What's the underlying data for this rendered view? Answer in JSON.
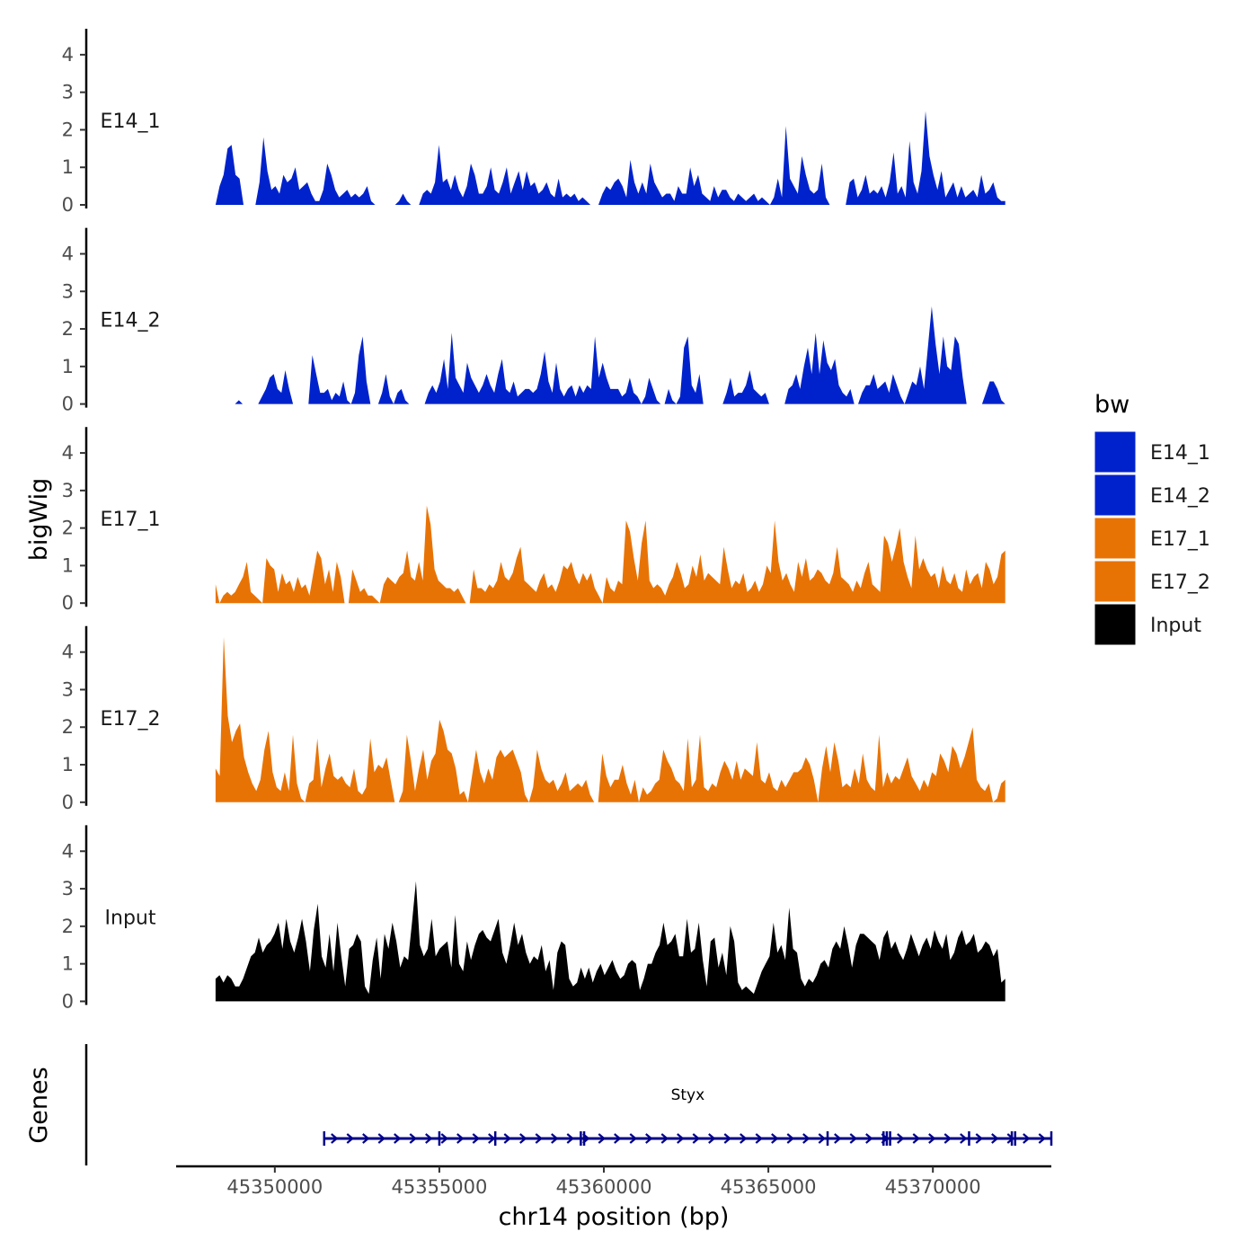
{
  "chart_data": {
    "type": "area",
    "ylabel": "bigWig",
    "xlabel": "chr14 position (bp)",
    "ylim": [
      0,
      4.5
    ],
    "yticks": [
      0,
      1,
      2,
      3,
      4
    ],
    "xlim": [
      45347000,
      45373600
    ],
    "xticks": [
      45350000,
      45355000,
      45360000,
      45365000,
      45370000
    ],
    "xtick_labels": [
      "45350000",
      "45355000",
      "45360000",
      "45365000",
      "45370000"
    ],
    "legend": {
      "title": "bw",
      "position": "right",
      "entries": [
        {
          "label": "E14_1",
          "color": "#0022cc"
        },
        {
          "label": "E14_2",
          "color": "#0022cc"
        },
        {
          "label": "E17_1",
          "color": "#e87305"
        },
        {
          "label": "E17_2",
          "color": "#e87305"
        },
        {
          "label": "Input",
          "color": "#000000"
        }
      ]
    },
    "series": [
      {
        "name": "E14_1",
        "color": "#0022cc",
        "x_range": [
          45348200,
          45372200
        ],
        "values": [
          0,
          0.5,
          0.8,
          1.5,
          1.6,
          0.8,
          0.7,
          0,
          0,
          0,
          0,
          0.6,
          1.8,
          0.9,
          0.4,
          0.5,
          0.3,
          0.8,
          0.6,
          0.7,
          1,
          0.4,
          0.5,
          0.6,
          0.3,
          0.1,
          0.1,
          0.4,
          1.1,
          0.8,
          0.4,
          0.2,
          0.3,
          0.4,
          0.2,
          0.3,
          0.2,
          0.3,
          0.5,
          0.1,
          0,
          0,
          0,
          0,
          0,
          0,
          0.1,
          0.3,
          0.1,
          0,
          0,
          0,
          0.3,
          0.4,
          0.3,
          0.6,
          1.6,
          0.6,
          0.7,
          0.4,
          0.8,
          0.4,
          0.2,
          0.5,
          1.1,
          0.8,
          0.3,
          0.3,
          0.5,
          1,
          0.4,
          0.3,
          0.6,
          1,
          0.3,
          0.6,
          0.9,
          0.4,
          0.9,
          0.5,
          0.6,
          0.3,
          0.4,
          0.6,
          0.3,
          0.2,
          0.7,
          0.2,
          0.3,
          0.2,
          0.3,
          0.1,
          0.2,
          0.1,
          0,
          0,
          0,
          0.3,
          0.5,
          0.4,
          0.6,
          0.7,
          0.5,
          0.2,
          1.2,
          0.6,
          0.3,
          0.6,
          0.3,
          1.1,
          0.6,
          0.4,
          0.2,
          0.3,
          0.3,
          0.1,
          0.5,
          0.3,
          0.3,
          1,
          0.5,
          0.8,
          0.3,
          0.2,
          0.1,
          0.5,
          0.2,
          0.4,
          0.4,
          0.2,
          0.1,
          0.3,
          0.2,
          0.1,
          0.2,
          0.3,
          0.1,
          0.2,
          0.1,
          0,
          0.2,
          0.7,
          0.2,
          2.1,
          0.7,
          0.5,
          0.3,
          1.3,
          0.8,
          0.4,
          0.3,
          0.4,
          1.1,
          0.2,
          0,
          0,
          0,
          0,
          0,
          0.6,
          0.7,
          0.2,
          0.4,
          0.8,
          0.3,
          0.4,
          0.3,
          0.5,
          0.2,
          0.6,
          1.4,
          0.3,
          0.5,
          0.2,
          1.7,
          0.6,
          0.3,
          0.9,
          2.5,
          1.3,
          0.8,
          0.4,
          0.9,
          0.2,
          0.4,
          0.6,
          0.2,
          0.5,
          0.2,
          0.3,
          0.4,
          0.2,
          0.8,
          0.3,
          0.4,
          0.6,
          0.2,
          0.1,
          0.1
        ]
      },
      {
        "name": "E14_2",
        "color": "#0022cc",
        "x_range": [
          45348200,
          45372200
        ],
        "values": [
          0,
          0,
          0,
          0,
          0,
          0,
          0.1,
          0,
          0,
          0,
          0,
          0,
          0.2,
          0.4,
          0.7,
          0.8,
          0.4,
          0.3,
          0.9,
          0.4,
          0,
          0,
          0,
          0,
          0,
          1.3,
          0.8,
          0.3,
          0.3,
          0.4,
          0.1,
          0.3,
          0.2,
          0.6,
          0.1,
          0,
          0.3,
          1.3,
          1.8,
          0.6,
          0,
          0,
          0,
          0.3,
          0.8,
          0.2,
          0,
          0.3,
          0.4,
          0.1,
          0,
          0,
          0,
          0,
          0,
          0.3,
          0.5,
          0.3,
          0.6,
          1.2,
          0.4,
          1.9,
          0.7,
          0.5,
          0.3,
          1.1,
          0.7,
          0.5,
          0.3,
          0.5,
          0.8,
          0.5,
          0.3,
          0.8,
          1.2,
          0.4,
          0.3,
          0.6,
          0.2,
          0.3,
          0.4,
          0.4,
          0.3,
          0.4,
          0.8,
          1.4,
          0.6,
          0.3,
          1.1,
          0.4,
          0.2,
          0.4,
          0.5,
          0.2,
          0.5,
          0.3,
          0.5,
          0.4,
          1.8,
          0.7,
          1.1,
          0.7,
          0.4,
          0.4,
          0.4,
          0.2,
          0.3,
          0.7,
          0.3,
          0.2,
          0,
          0.2,
          0.7,
          0.4,
          0.1,
          0,
          0,
          0.4,
          0.1,
          0,
          0.2,
          1.5,
          1.8,
          0.5,
          0.3,
          0.8,
          0,
          0,
          0,
          0,
          0,
          0,
          0.3,
          0.7,
          0.2,
          0.3,
          0.3,
          0.5,
          0.9,
          0.4,
          0.3,
          0.2,
          0.3,
          0,
          0,
          0,
          0,
          0,
          0.4,
          0.5,
          0.8,
          0.4,
          1,
          1.5,
          0.8,
          1.9,
          0.8,
          1.7,
          1.1,
          0.9,
          1.2,
          0.5,
          0.3,
          0.2,
          0.4,
          0,
          0,
          0.3,
          0.5,
          0.5,
          0.8,
          0.4,
          0.5,
          0.6,
          0.3,
          0.8,
          0.5,
          0.2,
          0,
          0.3,
          0.6,
          0.5,
          1,
          0.4,
          1.5,
          2.6,
          1.6,
          0.8,
          1.8,
          1,
          0.9,
          1.8,
          1.6,
          0.7,
          0,
          0,
          0,
          0,
          0,
          0.3,
          0.6,
          0.6,
          0.4,
          0.1,
          0
        ]
      },
      {
        "name": "E17_1",
        "color": "#e87305",
        "x_range": [
          45348200,
          45372200
        ],
        "values": [
          0.5,
          0,
          0.2,
          0.3,
          0.2,
          0.3,
          0.5,
          0.7,
          1.1,
          0.3,
          0.2,
          0.1,
          0,
          1.2,
          1,
          0.9,
          0.3,
          0.8,
          0.5,
          0.6,
          0.3,
          0.7,
          0.4,
          0.5,
          0.2,
          0.8,
          1.4,
          1.2,
          0.5,
          0.9,
          0.3,
          1.1,
          0.7,
          0,
          0,
          0.9,
          0.6,
          0.3,
          0.4,
          0.2,
          0.2,
          0.1,
          0,
          0.5,
          0.7,
          0.6,
          0.5,
          0.7,
          0.8,
          1.4,
          0.7,
          0.6,
          1.1,
          0.6,
          2.6,
          2.1,
          0.9,
          0.6,
          0.5,
          0.4,
          0.4,
          0.3,
          0.4,
          0.2,
          0,
          0,
          0.9,
          0.4,
          0.4,
          0.3,
          0.5,
          0.4,
          0.6,
          1.1,
          0.7,
          0.6,
          0.8,
          1.2,
          1.5,
          0.6,
          0.5,
          0.4,
          0.3,
          0.6,
          0.8,
          0.4,
          0.5,
          0.3,
          0.6,
          1,
          0.9,
          1.1,
          0.7,
          0.5,
          0.8,
          0.6,
          0.8,
          0.4,
          0.2,
          0,
          0.7,
          0.4,
          0.3,
          0.6,
          0.5,
          2.2,
          1.9,
          1.2,
          0.6,
          1.6,
          2.2,
          0.6,
          0.4,
          0.5,
          0.4,
          0.2,
          0.5,
          0.7,
          1.1,
          0.8,
          0.4,
          0.5,
          1,
          0.7,
          1.3,
          0.6,
          0.8,
          0.7,
          0.6,
          0.5,
          1.5,
          0.9,
          0.4,
          0.6,
          0.5,
          0.8,
          0.3,
          0.4,
          0.6,
          0.3,
          0.5,
          1,
          0.8,
          2.2,
          1.1,
          0.6,
          0.8,
          0.5,
          0.3,
          1.1,
          0.7,
          1.2,
          0.6,
          0.7,
          0.9,
          0.8,
          0.6,
          0.5,
          0.8,
          1.5,
          0.7,
          0.6,
          0.5,
          0.3,
          0.6,
          0.4,
          0.8,
          1.1,
          0.5,
          0.4,
          0.3,
          1.8,
          1.6,
          1.1,
          1.5,
          2,
          1.1,
          0.7,
          0.4,
          1.8,
          0.9,
          1.2,
          0.9,
          0.7,
          0.8,
          0.4,
          1,
          0.6,
          0.5,
          0.8,
          0.4,
          0.3,
          0.9,
          0.5,
          0.7,
          0.8,
          0.4,
          1.1,
          0.9,
          0.5,
          0.7,
          1.3,
          1.4
        ]
      },
      {
        "name": "E17_2",
        "color": "#e87305",
        "x_range": [
          45348200,
          45372200
        ],
        "values": [
          0.9,
          0.7,
          4.4,
          2.3,
          1.6,
          1.9,
          2.1,
          1.2,
          0.8,
          0.5,
          0.3,
          0.6,
          1.4,
          1.9,
          0.8,
          0.4,
          0.3,
          0.8,
          0.3,
          1.8,
          0.5,
          0.1,
          0,
          0.5,
          0.6,
          1.7,
          0.4,
          0.9,
          1.3,
          0.7,
          0.6,
          0.7,
          0.5,
          0.4,
          0.9,
          0.3,
          0.2,
          0.4,
          1.7,
          0.8,
          1,
          0.9,
          1.2,
          0.6,
          0,
          0,
          0.3,
          1.8,
          1.1,
          0.3,
          0.9,
          1.4,
          0.6,
          1.1,
          1.3,
          2.2,
          1.9,
          1.4,
          1.3,
          0.9,
          0.2,
          0.3,
          0,
          0.7,
          1.4,
          0.8,
          0.5,
          0.9,
          0.6,
          1.2,
          1.4,
          1.2,
          1.3,
          1.4,
          1.1,
          0.8,
          0.2,
          0,
          0.4,
          1.4,
          0.9,
          0.6,
          0.5,
          0.6,
          0.3,
          0.5,
          0.8,
          0.3,
          0.4,
          0.5,
          0.4,
          0.6,
          0.2,
          0,
          0,
          1.3,
          0.7,
          0.4,
          0.6,
          0.6,
          1,
          0.5,
          0.2,
          0.6,
          0,
          0.4,
          0.2,
          0.3,
          0.5,
          0.6,
          1.4,
          1.1,
          0.9,
          0.6,
          0.5,
          0.3,
          1.7,
          0.4,
          0.6,
          1.8,
          0.4,
          0.3,
          0.5,
          0.4,
          0.8,
          1.1,
          0.9,
          0.6,
          1.1,
          0.6,
          0.9,
          0.8,
          0.7,
          1.6,
          0.6,
          0.5,
          0.8,
          0.4,
          0.3,
          0.6,
          0.4,
          0.6,
          0.8,
          0.8,
          0.9,
          1.2,
          1,
          0.6,
          0,
          0.9,
          1.5,
          0.8,
          1.6,
          1.1,
          0.4,
          0.5,
          0.4,
          0.9,
          0.5,
          1.3,
          0.6,
          0.4,
          0.3,
          1.8,
          0.4,
          0.8,
          0.5,
          0.7,
          0.6,
          0.9,
          1.2,
          0.7,
          0.5,
          0.3,
          0.6,
          0.4,
          0.8,
          0.7,
          1.3,
          1.1,
          0.8,
          1.5,
          1.3,
          0.9,
          1.2,
          1.6,
          2,
          0.6,
          0.4,
          0.3,
          0.5,
          0,
          0.1,
          0.5,
          0.6
        ]
      },
      {
        "name": "Input",
        "color": "#000000",
        "x_range": [
          45348200,
          45372200
        ],
        "values": [
          0.6,
          0.7,
          0.5,
          0.7,
          0.6,
          0.4,
          0.4,
          0.6,
          0.9,
          1.2,
          1.3,
          1.7,
          1.3,
          1.5,
          1.6,
          1.8,
          2.1,
          1.4,
          2.2,
          1.6,
          1.3,
          1.7,
          2.2,
          1.6,
          0.8,
          1.9,
          2.6,
          1.2,
          0.9,
          1.8,
          0.8,
          2.1,
          1.2,
          0.4,
          1.4,
          1.5,
          1.8,
          1.6,
          0.4,
          0.2,
          1.1,
          1.7,
          0.6,
          1.8,
          1.4,
          2.1,
          1.6,
          0.9,
          1.2,
          1.1,
          2.1,
          3.2,
          1.5,
          1.2,
          1.4,
          2.2,
          1.2,
          1.4,
          1.5,
          1.6,
          0.9,
          2.3,
          1,
          0.8,
          1.6,
          1.1,
          1.5,
          1.8,
          1.9,
          1.7,
          1.6,
          1.9,
          2.2,
          1.3,
          1,
          1.5,
          2.1,
          1.5,
          1.8,
          1.3,
          1,
          1.2,
          1.1,
          1.5,
          0.8,
          1.1,
          0.3,
          1.3,
          1.6,
          1.5,
          0.6,
          0.4,
          0.5,
          0.9,
          0.6,
          0.9,
          0.5,
          0.8,
          1,
          0.7,
          0.9,
          1.1,
          0.8,
          0.6,
          0.7,
          1,
          1.1,
          1,
          0.3,
          0.6,
          1,
          1,
          1.3,
          1.5,
          2.1,
          1.5,
          1.6,
          1.8,
          1.2,
          1.2,
          2.2,
          1.3,
          1.4,
          2.1,
          1.1,
          0.4,
          1.6,
          1.7,
          0.9,
          1.3,
          0.7,
          2,
          1.6,
          0.5,
          0.3,
          0.4,
          0.3,
          0.2,
          0.5,
          0.8,
          1,
          1.2,
          2.1,
          1.3,
          1.5,
          1.1,
          2.5,
          1.4,
          1.3,
          0.6,
          0.4,
          0.6,
          0.5,
          0.7,
          1,
          1.1,
          0.9,
          1.4,
          1.6,
          1.4,
          2,
          1.5,
          0.9,
          1.5,
          1.8,
          1.8,
          1.7,
          1.6,
          1.5,
          1.1,
          1.7,
          1.9,
          1.4,
          1.6,
          1.3,
          1.1,
          1.4,
          1.8,
          1.5,
          1.2,
          1.5,
          1.7,
          1.4,
          1.9,
          1.6,
          1.4,
          1.8,
          1.1,
          1.3,
          1.7,
          1.9,
          1.5,
          1.6,
          1.8,
          1.3,
          1.4,
          1.6,
          1.5,
          1.2,
          1.4,
          0.5,
          0.6
        ]
      }
    ],
    "genes": {
      "label": "Genes",
      "items": [
        {
          "name": "Styx",
          "start": 45351500,
          "end": 45373600,
          "strand": "+",
          "color": "#00008b",
          "exons": [
            45351500,
            45355000,
            45356700,
            45359300,
            45359400,
            45366800,
            45368500,
            45368600,
            45368700,
            45371100,
            45372400,
            45372500,
            45373600
          ]
        }
      ]
    }
  }
}
